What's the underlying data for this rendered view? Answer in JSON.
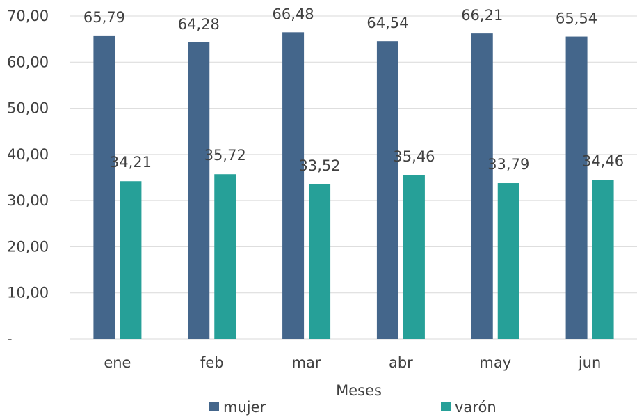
{
  "chart_data": {
    "type": "bar",
    "title": "",
    "xlabel": "Meses",
    "ylabel": "",
    "categories": [
      "ene",
      "feb",
      "mar",
      "abr",
      "may",
      "jun"
    ],
    "series": [
      {
        "name": "mujer",
        "color": "#44668b",
        "values": [
          65.79,
          64.28,
          66.48,
          64.54,
          66.21,
          65.54
        ],
        "labels": [
          "65,79",
          "64,28",
          "66,48",
          "64,54",
          "66,21",
          "65,54"
        ]
      },
      {
        "name": "varón",
        "color": "#26a098",
        "values": [
          34.21,
          35.72,
          33.52,
          35.46,
          33.79,
          34.46
        ],
        "labels": [
          "34,21",
          "35,72",
          "33,52",
          "35,46",
          "33,79",
          "34,46"
        ]
      }
    ],
    "ylim": [
      0,
      70
    ],
    "yticks": [
      0,
      10,
      20,
      30,
      40,
      50,
      60,
      70
    ],
    "ytick_labels": [
      "-",
      "10,00",
      "20,00",
      "30,00",
      "40,00",
      "50,00",
      "60,00",
      "70,00"
    ],
    "grid": true,
    "legend": "bottom"
  }
}
